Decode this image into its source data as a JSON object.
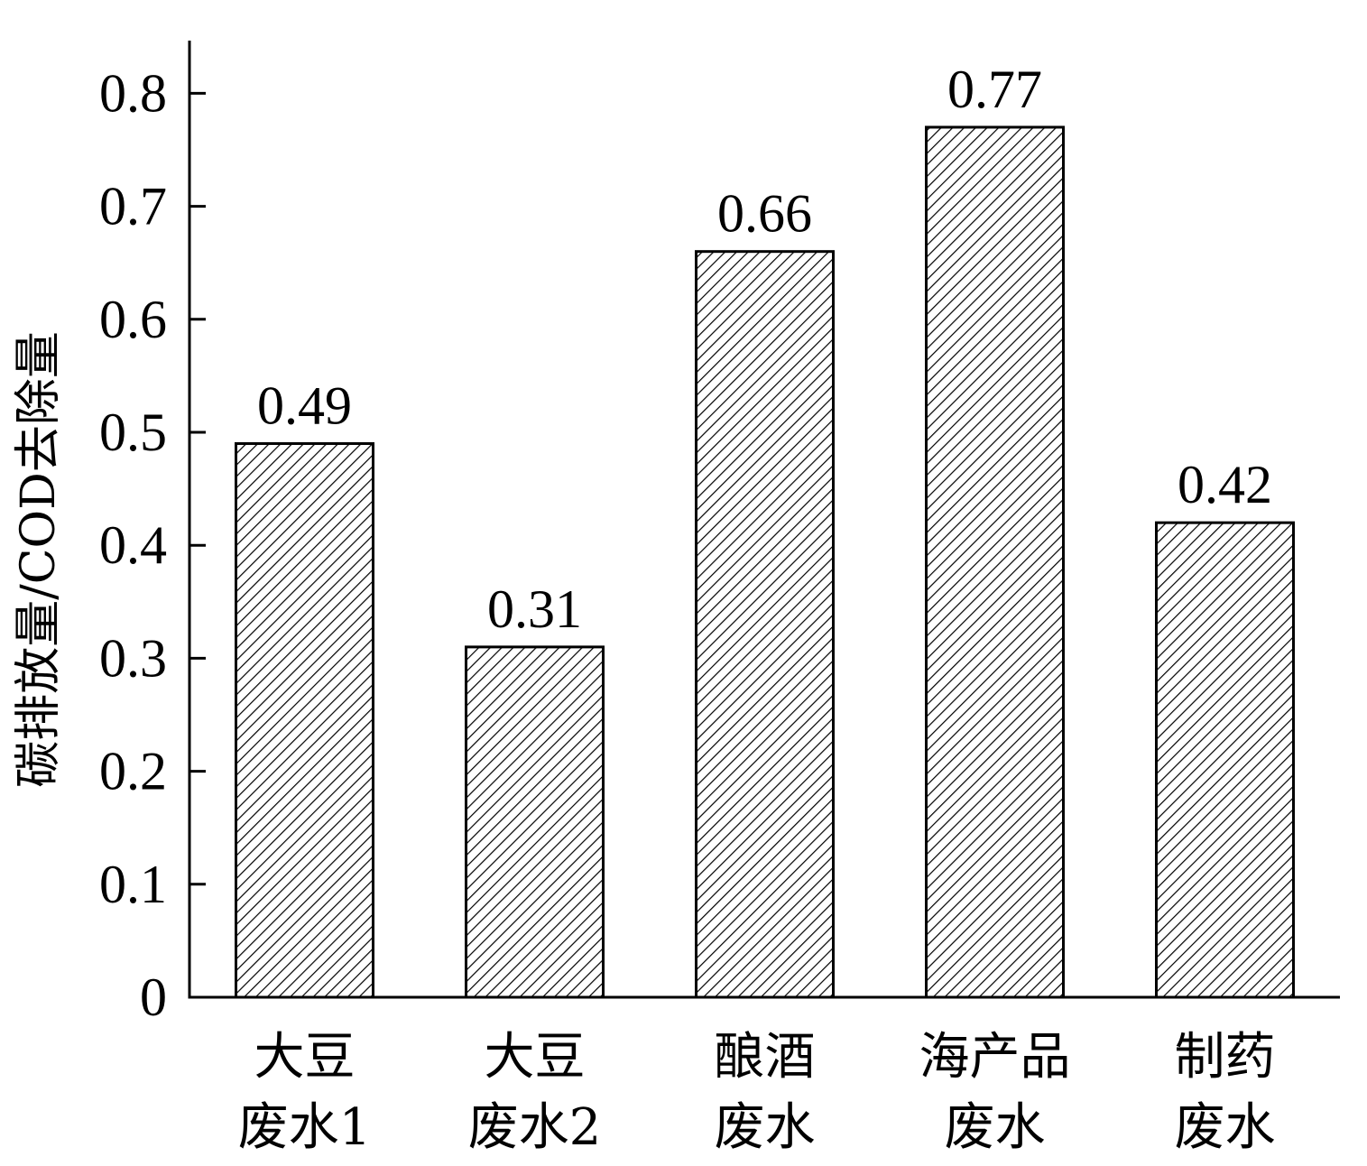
{
  "chart_data": {
    "type": "bar",
    "title": "",
    "xlabel": "",
    "ylabel": "碳排放量/COD去除量",
    "ylim": [
      0,
      0.85
    ],
    "yticks": [
      "0",
      "0.1",
      "0.2",
      "0.3",
      "0.4",
      "0.5",
      "0.6",
      "0.7",
      "0.8"
    ],
    "categories": [
      [
        "大豆",
        "废水1"
      ],
      [
        "大豆",
        "废水2"
      ],
      [
        "酿酒",
        "废水"
      ],
      [
        "海产品",
        "废水"
      ],
      [
        "制药",
        "废水"
      ]
    ],
    "values": [
      0.49,
      0.31,
      0.66,
      0.77,
      0.42
    ],
    "value_labels": [
      "0.49",
      "0.31",
      "0.66",
      "0.77",
      "0.42"
    ],
    "grid": false,
    "legend": "none",
    "colors": {
      "bar_fill": "#ffffff",
      "hatch": "#000000",
      "axis": "#000000"
    }
  }
}
